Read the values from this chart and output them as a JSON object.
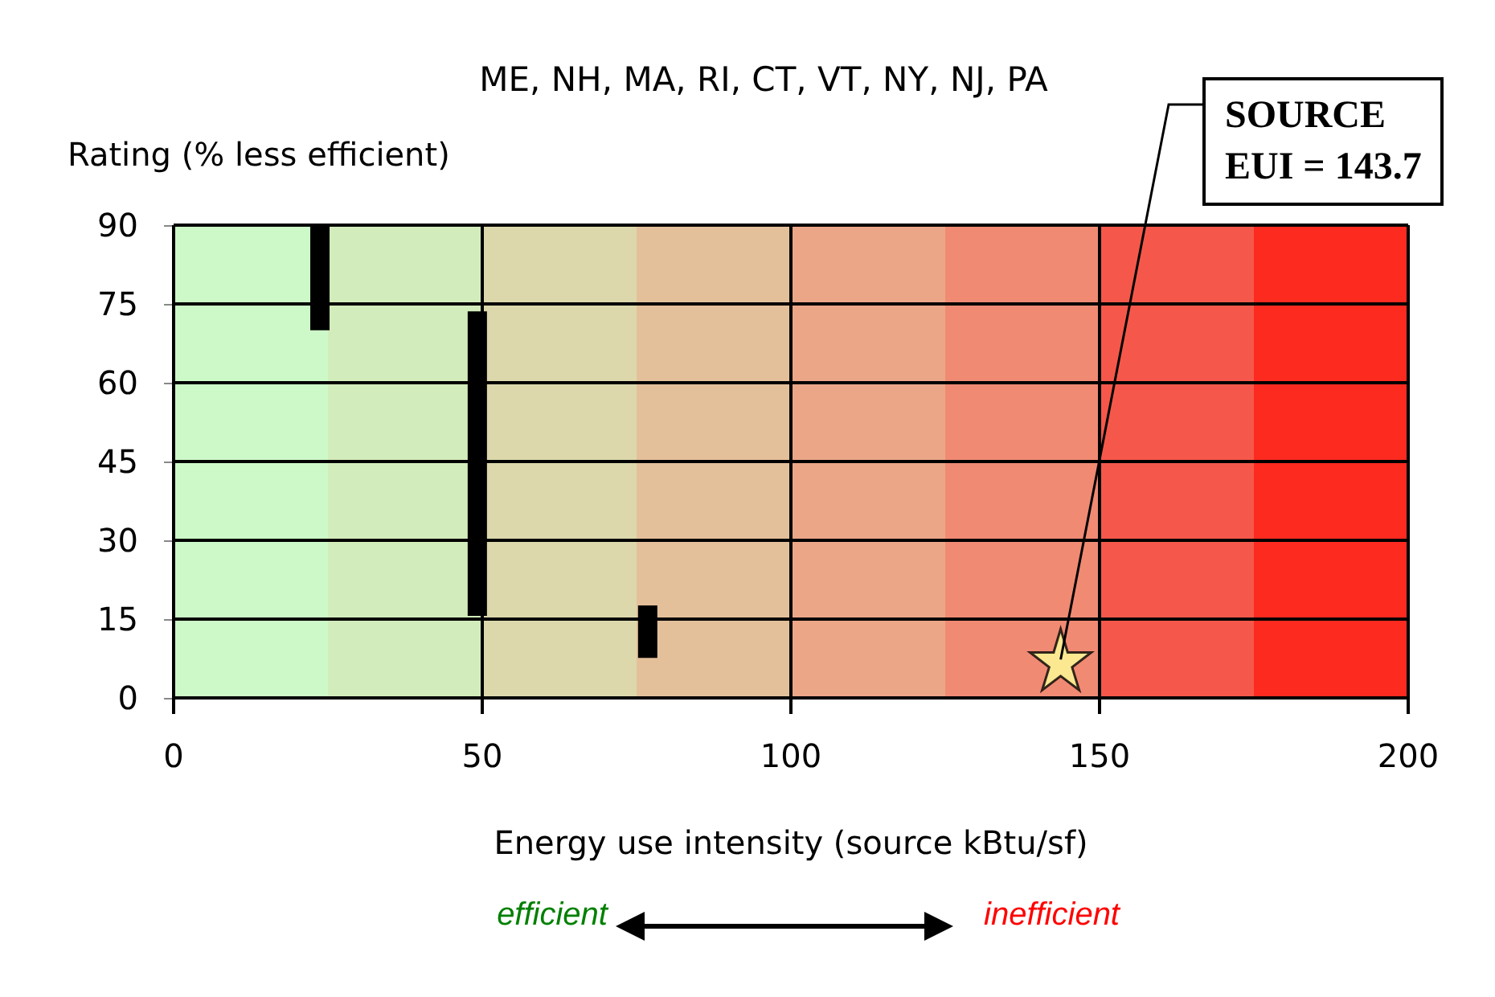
{
  "chart_data": {
    "type": "scatter",
    "title": "ME, NH, MA, RI, CT, VT, NY, NJ, PA",
    "ylabel": "Rating (% less efficient)",
    "xlabel": "Energy use intensity (source kBtu/sf)",
    "series": [
      {
        "type": "bar",
        "color": "#000000",
        "x": [
          23.7,
          49.2,
          76.8
        ],
        "base": [
          70,
          15.6,
          7.6
        ],
        "values": [
          20,
          58,
          10
        ]
      },
      {
        "color": "#ffff99",
        "marker": "star",
        "x": [
          143.7
        ],
        "values": [
          7.3
        ]
      }
    ],
    "xlim": [
      0,
      200
    ],
    "xticks": [
      0,
      50,
      100,
      150,
      200
    ],
    "ylim": [
      0,
      90
    ],
    "yticks": [
      0,
      15,
      30,
      45,
      60,
      75,
      90
    ],
    "grid": true,
    "bands": [
      {
        "axis": "x",
        "from": 0,
        "to": 25,
        "color": "#cdf9c8"
      },
      {
        "axis": "x",
        "from": 25,
        "to": 50,
        "color": "#d3ecbb"
      },
      {
        "axis": "x",
        "from": 50,
        "to": 75,
        "color": "#dcd8ac"
      },
      {
        "axis": "x",
        "from": 75,
        "to": 100,
        "color": "#e4c09a"
      },
      {
        "axis": "x",
        "from": 100,
        "to": 125,
        "color": "#eba688"
      },
      {
        "axis": "x",
        "from": 125,
        "to": 150,
        "color": "#f08a73"
      },
      {
        "axis": "x",
        "from": 150,
        "to": 175,
        "color": "#f5584a"
      },
      {
        "axis": "x",
        "from": 175,
        "to": 200,
        "color": "#fd2a20"
      }
    ],
    "annotations": [
      {
        "text": "SOURCE\nEUI = 143.7",
        "x": 143.7,
        "y": 7.3
      },
      "efficient",
      "inefficient"
    ]
  }
}
